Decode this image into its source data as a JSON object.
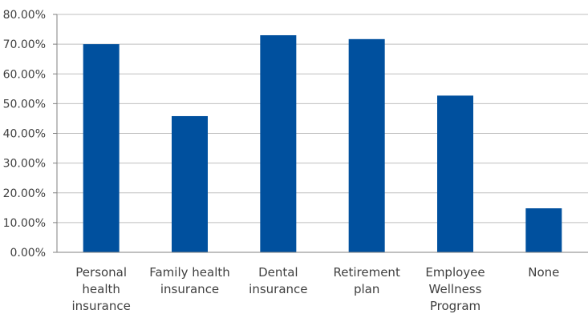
{
  "chart_data": {
    "type": "bar",
    "categories": [
      [
        "Personal",
        "health",
        "insurance"
      ],
      [
        "Family health",
        "insurance"
      ],
      [
        "Dental",
        "insurance"
      ],
      [
        "Retirement",
        "plan"
      ],
      [
        "Employee",
        "Wellness",
        "Program"
      ],
      [
        "None"
      ]
    ],
    "series": [
      {
        "values": [
          0.7,
          0.458,
          0.73,
          0.717,
          0.527,
          0.148
        ]
      }
    ],
    "yticks": [
      "0.00%",
      "10.00%",
      "20.00%",
      "30.00%",
      "40.00%",
      "50.00%",
      "60.00%",
      "70.00%",
      "80.00%"
    ],
    "ylim": [
      0,
      0.8
    ],
    "grid": true,
    "legend": "none",
    "colors": {
      "bar": "#00509E",
      "grid": "#BFBFBF",
      "axis": "#808080",
      "text": "#404040"
    }
  }
}
